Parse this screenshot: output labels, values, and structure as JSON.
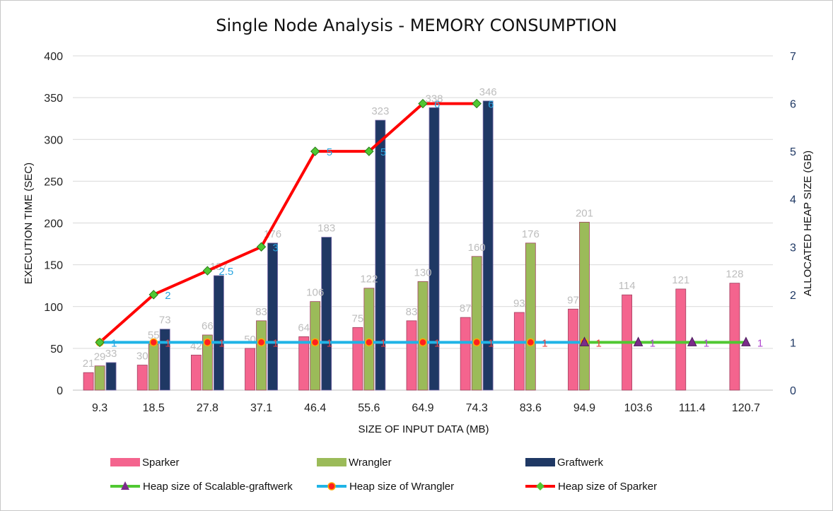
{
  "chart_data": {
    "type": "bar",
    "title": "Single Node Analysis - MEMORY CONSUMPTION",
    "xlabel": "SIZE OF INPUT DATA (MB)",
    "ylabel": "EXECUTION TIME (SEC)",
    "y2label": "ALLOCATED HEAP SIZE (GB)",
    "ylim": [
      0,
      400
    ],
    "y2lim": [
      0,
      7
    ],
    "yticks": [
      "0",
      "50",
      "100",
      "150",
      "200",
      "250",
      "300",
      "350",
      "400"
    ],
    "y2ticks": [
      "0",
      "1",
      "2",
      "3",
      "4",
      "5",
      "6",
      "7"
    ],
    "categories": [
      "9.3",
      "18.5",
      "27.8",
      "37.1",
      "46.4",
      "55.6",
      "64.9",
      "74.3",
      "83.6",
      "94.9",
      "103.6",
      "111.4",
      "120.7"
    ],
    "series": [
      {
        "name": "Sparker",
        "kind": "bar",
        "color": "#f4648e",
        "values": [
          21,
          30,
          42,
          50,
          64,
          75,
          83,
          87,
          93,
          97,
          114,
          121,
          128
        ]
      },
      {
        "name": "Wrangler",
        "kind": "bar",
        "color": "#9bbb59",
        "values": [
          29,
          55,
          66,
          83,
          106,
          122,
          130,
          160,
          176,
          201,
          null,
          null,
          null
        ]
      },
      {
        "name": "Graftwerk",
        "kind": "bar",
        "color": "#1f3864",
        "values": [
          33,
          73,
          137,
          176,
          183,
          323,
          338,
          346,
          null,
          null,
          null,
          null,
          null
        ]
      }
    ],
    "line_series": [
      {
        "name": "Heap size of Scalable-graftwerk",
        "color": "#50c832",
        "marker": "triangle",
        "marker_color": "#7b2c8a",
        "label_color": "#b04ad0",
        "values": [
          null,
          null,
          null,
          null,
          null,
          null,
          null,
          null,
          null,
          1,
          1,
          1,
          1
        ],
        "labels": [
          null,
          null,
          null,
          null,
          null,
          null,
          null,
          null,
          null,
          null,
          "1",
          "1",
          "1"
        ]
      },
      {
        "name": "Heap size of Wrangler",
        "color": "#1fb4e6",
        "marker": "circle",
        "marker_color": "#ff2020",
        "label_color": "#e84040",
        "values": [
          1,
          1,
          1,
          1,
          1,
          1,
          1,
          1,
          1,
          1,
          null,
          null,
          null
        ],
        "labels": [
          null,
          "1",
          "1",
          "1",
          "1",
          "1",
          "1",
          "1",
          "1",
          "1",
          null,
          null,
          null
        ]
      },
      {
        "name": "Heap size of Sparker",
        "color": "#ff0000",
        "marker": "diamond",
        "marker_color": "#50c832",
        "label_color": "#2aa6e0",
        "values": [
          1,
          2,
          2.5,
          3,
          5,
          5,
          6,
          6,
          null,
          null,
          null,
          null,
          null
        ],
        "labels": [
          "1",
          "2",
          "2.5",
          "3",
          "5",
          "5",
          "6",
          "6",
          null,
          null,
          null,
          null,
          null
        ]
      }
    ],
    "legend_position": "bottom",
    "grid": true
  }
}
